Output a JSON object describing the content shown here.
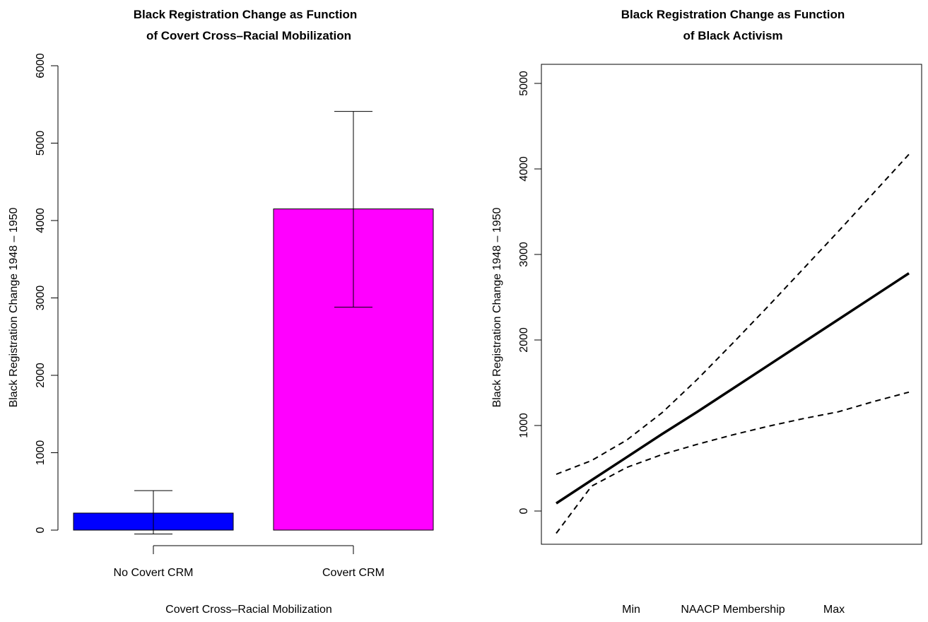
{
  "chart_data": [
    {
      "type": "bar",
      "title_lines": [
        "Black Registration Change as Function",
        "of Covert Cross–Racial Mobilization"
      ],
      "xlabel": "Covert Cross–Racial Mobilization",
      "ylabel": "Black Registration Change 1948 – 1950",
      "categories": [
        "No Covert CRM",
        "Covert CRM"
      ],
      "values": [
        220,
        4150
      ],
      "error_low": [
        -50,
        2880
      ],
      "error_high": [
        510,
        5410
      ],
      "colors": [
        "#0000ff",
        "#ff00ff"
      ],
      "ylim": [
        0,
        6000
      ],
      "yticks": [
        0,
        1000,
        2000,
        3000,
        4000,
        5000,
        6000
      ],
      "grid": false
    },
    {
      "type": "line",
      "title_lines": [
        "Black Registration Change as Function",
        "of Black Activism"
      ],
      "xlabel_parts": [
        "Min",
        "NAACP Membership",
        "Max"
      ],
      "ylabel": "Black Registration Change 1948 – 1950",
      "x": [
        0,
        0.1,
        0.2,
        0.3,
        0.4,
        0.5,
        0.6,
        0.7,
        0.8,
        0.9,
        1.0
      ],
      "series": [
        {
          "values": [
            90,
            360,
            630,
            900,
            1160,
            1430,
            1700,
            1970,
            2240,
            2510,
            2780
          ],
          "style": "solid"
        },
        {
          "values": [
            430,
            590,
            830,
            1150,
            1540,
            1960,
            2390,
            2830,
            3270,
            3720,
            4170
          ],
          "style": "dashed"
        },
        {
          "values": [
            -260,
            290,
            510,
            660,
            780,
            890,
            990,
            1080,
            1160,
            1280,
            1390
          ],
          "style": "dashed"
        }
      ],
      "ylim": [
        -400,
        5200
      ],
      "yticks": [
        0,
        1000,
        2000,
        3000,
        4000,
        5000
      ],
      "grid": false
    }
  ]
}
